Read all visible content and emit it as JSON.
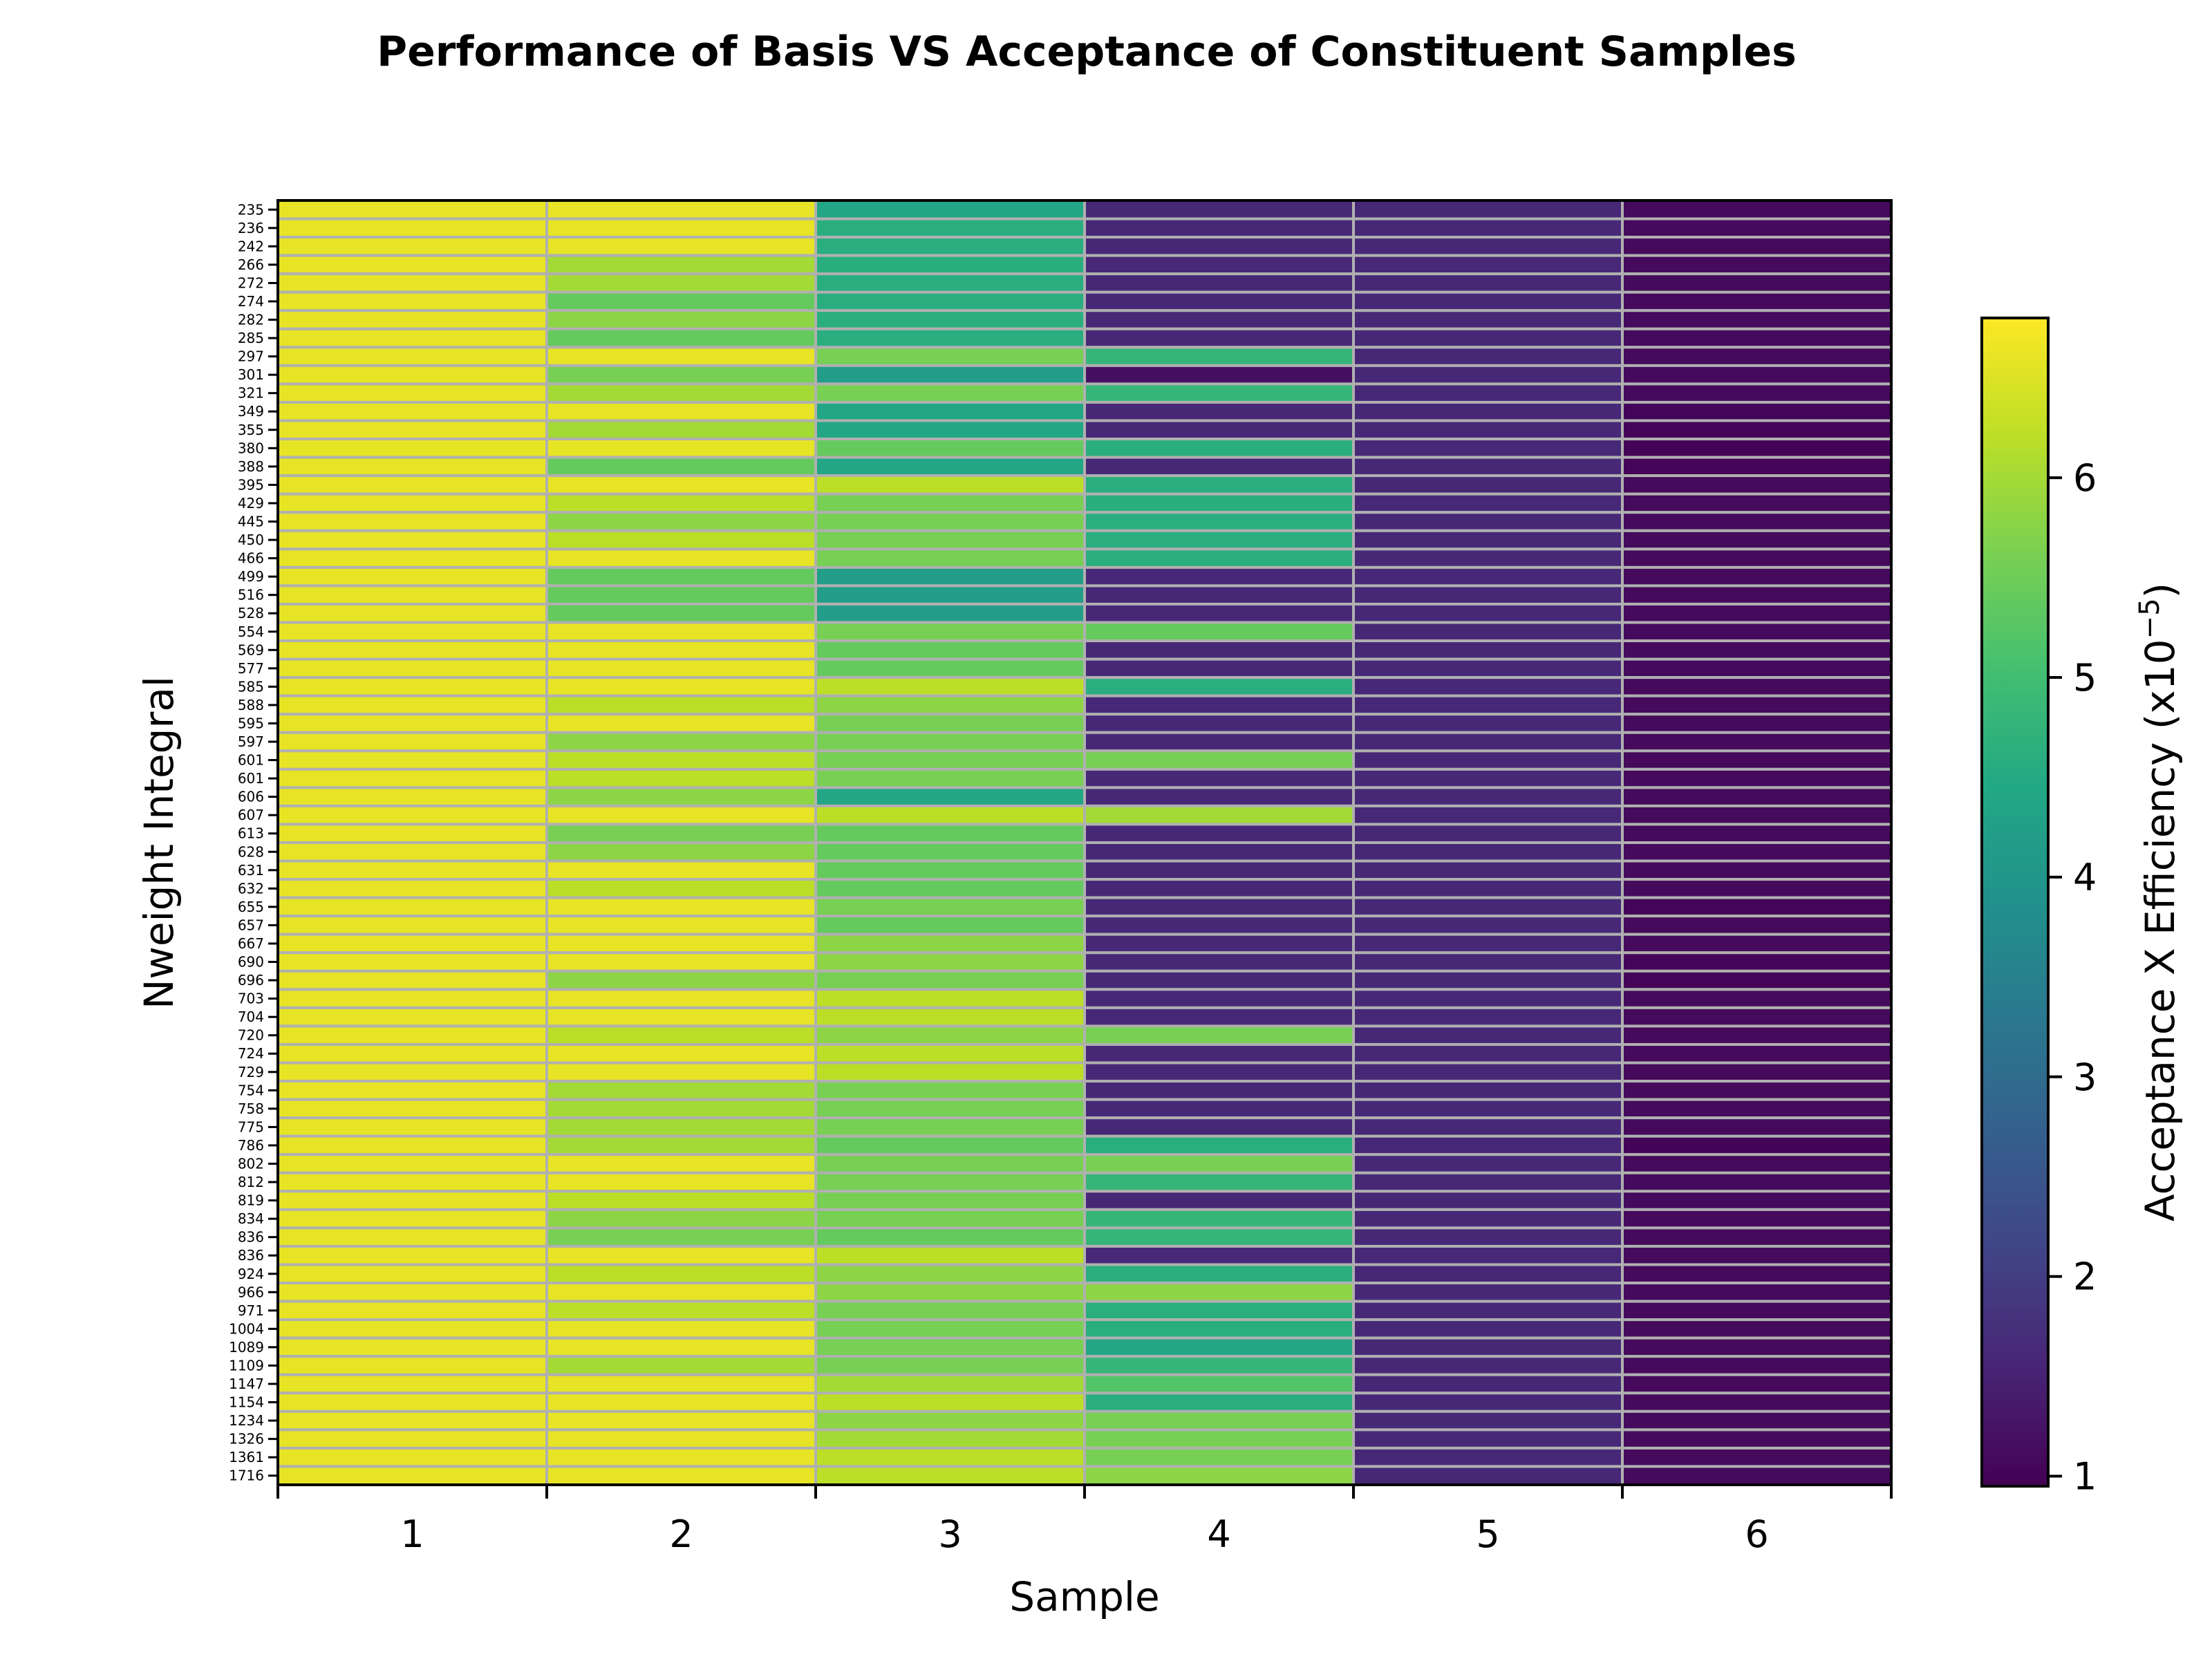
{
  "chart_data": {
    "type": "heatmap",
    "title": "Performance of Basis VS Acceptance of Constituent Samples",
    "xlabel": "Sample",
    "ylabel": "Nweight Integral",
    "colorbar_label": "Acceptance X Efficiency (x10",
    "colorbar_label_exp": "−5",
    "colorbar_label_close": ")",
    "colorbar_range": [
      0.95,
      6.8
    ],
    "colorbar_ticks": [
      1,
      2,
      3,
      4,
      5,
      6
    ],
    "colormap": "viridis",
    "grid": true,
    "grid_color": "#b0b0b0",
    "x_categories": [
      "1",
      "2",
      "3",
      "4",
      "5",
      "6"
    ],
    "y_categories": [
      "235",
      "236",
      "242",
      "266",
      "272",
      "274",
      "282",
      "285",
      "297",
      "301",
      "321",
      "349",
      "355",
      "380",
      "388",
      "395",
      "429",
      "445",
      "450",
      "466",
      "499",
      "516",
      "528",
      "554",
      "569",
      "577",
      "585",
      "588",
      "595",
      "597",
      "601",
      "601",
      "606",
      "607",
      "613",
      "628",
      "631",
      "632",
      "655",
      "657",
      "667",
      "690",
      "696",
      "703",
      "704",
      "720",
      "724",
      "729",
      "754",
      "758",
      "775",
      "786",
      "802",
      "812",
      "819",
      "834",
      "836",
      "836",
      "924",
      "966",
      "971",
      "1004",
      "1089",
      "1109",
      "1147",
      "1154",
      "1234",
      "1326",
      "1361",
      "1716"
    ],
    "values": [
      [
        6.6,
        6.6,
        4.4,
        1.6,
        1.6,
        1.1
      ],
      [
        6.6,
        6.6,
        4.6,
        1.6,
        1.6,
        1.1
      ],
      [
        6.6,
        6.6,
        4.6,
        1.6,
        1.6,
        1.1
      ],
      [
        6.6,
        6.0,
        4.6,
        1.6,
        1.6,
        1.1
      ],
      [
        6.6,
        6.0,
        4.6,
        1.6,
        1.6,
        1.1
      ],
      [
        6.6,
        5.4,
        4.6,
        1.6,
        1.6,
        1.1
      ],
      [
        6.6,
        5.8,
        4.6,
        1.6,
        1.6,
        1.1
      ],
      [
        6.6,
        5.4,
        4.6,
        1.6,
        1.6,
        1.1
      ],
      [
        6.6,
        6.6,
        5.6,
        4.8,
        1.6,
        1.1
      ],
      [
        6.6,
        5.6,
        4.2,
        1.2,
        1.6,
        1.1
      ],
      [
        6.6,
        6.0,
        5.6,
        4.8,
        1.6,
        1.1
      ],
      [
        6.6,
        6.6,
        4.4,
        1.6,
        1.6,
        1.0
      ],
      [
        6.6,
        6.0,
        4.4,
        1.6,
        1.6,
        1.0
      ],
      [
        6.6,
        6.6,
        5.4,
        4.6,
        1.6,
        1.0
      ],
      [
        6.6,
        5.4,
        4.4,
        1.6,
        1.6,
        1.0
      ],
      [
        6.6,
        6.6,
        6.2,
        4.6,
        1.6,
        1.1
      ],
      [
        6.6,
        6.2,
        5.6,
        4.6,
        1.6,
        1.1
      ],
      [
        6.6,
        5.8,
        5.6,
        4.6,
        1.6,
        1.1
      ],
      [
        6.6,
        6.2,
        5.6,
        4.6,
        1.6,
        1.1
      ],
      [
        6.6,
        6.6,
        5.6,
        4.6,
        1.6,
        1.1
      ],
      [
        6.6,
        5.4,
        4.2,
        1.6,
        1.6,
        1.1
      ],
      [
        6.6,
        5.4,
        4.2,
        1.6,
        1.6,
        1.1
      ],
      [
        6.6,
        5.4,
        4.2,
        1.6,
        1.6,
        1.1
      ],
      [
        6.6,
        6.6,
        5.6,
        5.4,
        1.6,
        1.1
      ],
      [
        6.6,
        6.6,
        5.4,
        1.6,
        1.6,
        1.1
      ],
      [
        6.6,
        6.6,
        5.4,
        1.6,
        1.6,
        1.1
      ],
      [
        6.6,
        6.6,
        6.2,
        4.6,
        1.6,
        1.1
      ],
      [
        6.6,
        6.2,
        5.8,
        1.6,
        1.6,
        1.1
      ],
      [
        6.6,
        6.6,
        5.6,
        1.6,
        1.6,
        1.1
      ],
      [
        6.6,
        5.8,
        5.6,
        1.6,
        1.6,
        1.1
      ],
      [
        6.6,
        6.2,
        5.6,
        5.6,
        1.6,
        1.1
      ],
      [
        6.6,
        6.2,
        5.6,
        1.6,
        1.6,
        1.1
      ],
      [
        6.6,
        5.8,
        4.4,
        1.6,
        1.6,
        1.1
      ],
      [
        6.6,
        6.6,
        6.2,
        6.0,
        1.6,
        1.1
      ],
      [
        6.6,
        5.6,
        5.4,
        1.6,
        1.6,
        1.1
      ],
      [
        6.6,
        5.8,
        5.4,
        1.6,
        1.6,
        1.1
      ],
      [
        6.6,
        6.6,
        5.4,
        1.6,
        1.6,
        1.1
      ],
      [
        6.6,
        6.2,
        5.4,
        1.6,
        1.6,
        1.1
      ],
      [
        6.6,
        6.6,
        5.6,
        1.6,
        1.6,
        1.0
      ],
      [
        6.6,
        6.6,
        5.4,
        1.6,
        1.6,
        1.1
      ],
      [
        6.6,
        6.6,
        5.8,
        1.6,
        1.6,
        1.1
      ],
      [
        6.6,
        6.6,
        5.8,
        1.6,
        1.6,
        1.0
      ],
      [
        6.6,
        5.8,
        5.6,
        1.6,
        1.6,
        1.0
      ],
      [
        6.6,
        6.6,
        6.2,
        1.6,
        1.6,
        1.1
      ],
      [
        6.6,
        6.6,
        6.2,
        1.6,
        1.6,
        1.1
      ],
      [
        6.6,
        6.2,
        5.8,
        5.6,
        1.6,
        1.1
      ],
      [
        6.6,
        6.6,
        6.2,
        1.6,
        1.6,
        1.1
      ],
      [
        6.6,
        6.6,
        6.2,
        1.6,
        1.6,
        1.1
      ],
      [
        6.6,
        6.0,
        5.6,
        1.6,
        1.6,
        1.1
      ],
      [
        6.6,
        6.0,
        5.6,
        1.6,
        1.6,
        1.1
      ],
      [
        6.6,
        6.0,
        5.6,
        1.6,
        1.6,
        1.1
      ],
      [
        6.6,
        6.0,
        5.4,
        4.6,
        1.6,
        1.0
      ],
      [
        6.6,
        6.6,
        5.6,
        5.6,
        1.6,
        1.1
      ],
      [
        6.6,
        6.6,
        5.6,
        4.8,
        1.6,
        1.1
      ],
      [
        6.6,
        6.2,
        5.6,
        1.6,
        1.6,
        1.1
      ],
      [
        6.6,
        5.8,
        5.6,
        4.8,
        1.6,
        1.1
      ],
      [
        6.6,
        5.6,
        5.4,
        4.8,
        1.6,
        1.1
      ],
      [
        6.6,
        6.6,
        6.2,
        1.6,
        1.6,
        1.1
      ],
      [
        6.6,
        6.2,
        5.8,
        4.6,
        1.6,
        1.1
      ],
      [
        6.6,
        6.6,
        5.8,
        5.8,
        1.6,
        1.1
      ],
      [
        6.6,
        6.2,
        5.6,
        4.6,
        1.6,
        1.1
      ],
      [
        6.6,
        6.6,
        5.6,
        4.6,
        1.6,
        1.1
      ],
      [
        6.6,
        6.6,
        5.6,
        4.4,
        1.6,
        1.1
      ],
      [
        6.6,
        6.0,
        5.6,
        4.8,
        1.6,
        1.1
      ],
      [
        6.6,
        6.6,
        6.0,
        5.2,
        1.6,
        1.1
      ],
      [
        6.6,
        6.6,
        6.2,
        4.6,
        1.6,
        1.1
      ],
      [
        6.6,
        6.6,
        5.8,
        5.6,
        1.6,
        1.1
      ],
      [
        6.6,
        6.6,
        6.0,
        5.6,
        1.6,
        1.1
      ],
      [
        6.6,
        6.6,
        6.2,
        5.6,
        1.6,
        1.1
      ],
      [
        6.6,
        6.6,
        6.2,
        5.8,
        1.6,
        1.1
      ]
    ]
  }
}
